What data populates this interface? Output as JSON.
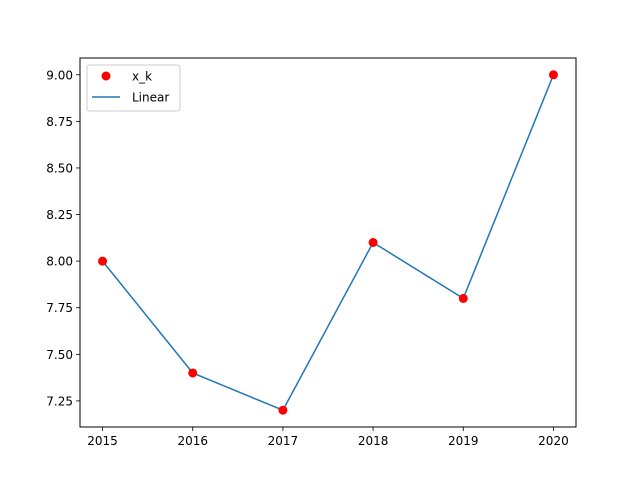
{
  "chart_data": {
    "type": "line",
    "title": "",
    "xlabel": "",
    "ylabel": "",
    "x": [
      2015,
      2016,
      2017,
      2018,
      2019,
      2020
    ],
    "series": [
      {
        "name": "Linear",
        "kind": "line",
        "values": [
          8.0,
          7.4,
          7.2,
          8.1,
          7.8,
          9.0
        ],
        "color": "#1f77b4"
      },
      {
        "name": "x_k",
        "kind": "scatter",
        "values": [
          8.0,
          7.4,
          7.2,
          8.1,
          7.8,
          9.0
        ],
        "color": "#ff0000"
      }
    ],
    "xlim": [
      2014.75,
      2020.25
    ],
    "ylim": [
      7.11,
      9.09
    ],
    "xticks": [
      2015,
      2016,
      2017,
      2018,
      2019,
      2020
    ],
    "xtick_labels": [
      "2015",
      "2016",
      "2017",
      "2018",
      "2019",
      "2020"
    ],
    "yticks": [
      7.25,
      7.5,
      7.75,
      8.0,
      8.25,
      8.5,
      8.75,
      9.0
    ],
    "ytick_labels": [
      "7.25",
      "7.50",
      "7.75",
      "8.00",
      "8.25",
      "8.50",
      "8.75",
      "9.00"
    ],
    "grid": false,
    "legend": {
      "position": "upper-left",
      "entries": [
        {
          "label": "x_k",
          "marker": "dot",
          "color": "#ff0000"
        },
        {
          "label": "Linear",
          "marker": "line",
          "color": "#1f77b4"
        }
      ]
    }
  }
}
